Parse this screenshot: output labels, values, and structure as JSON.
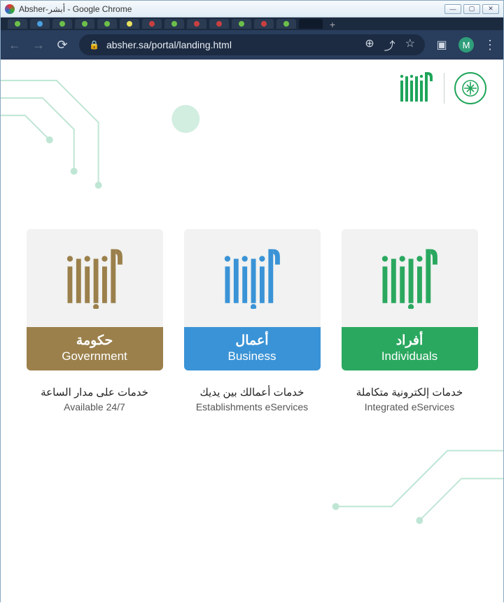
{
  "window": {
    "title": "Absher-أبشر - Google Chrome"
  },
  "browser": {
    "url": "absher.sa/portal/landing.html",
    "profile_initial": "M",
    "tab_dot_colors": [
      "#6cc04a",
      "#4aa0e0",
      "#6cc04a",
      "#6cc04a",
      "#6cc04a",
      "#e8e060",
      "#c84040",
      "#6cc04a",
      "#c84040",
      "#c84040",
      "#6cc04a",
      "#c84040",
      "#6cc04a"
    ]
  },
  "colors": {
    "gov": "#9b804c",
    "biz": "#3a93d6",
    "ind": "#2aa85f",
    "card_bg": "#f1f2f1",
    "decor": "#74c9a5",
    "decor_light": "#bfe6d4"
  },
  "cards": [
    {
      "key": "government",
      "color": "#9b804c",
      "title_ar": "حكومة",
      "title_en": "Government",
      "desc_ar": "خدمات على مدار الساعة",
      "desc_en": "Available 24/7"
    },
    {
      "key": "business",
      "color": "#3a93d6",
      "title_ar": "أعمال",
      "title_en": "Business",
      "desc_ar": "خدمات أعمالك بين يديك",
      "desc_en": "Establishments eServices"
    },
    {
      "key": "individuals",
      "color": "#2aa85f",
      "title_ar": "أفراد",
      "title_en": "Individuals",
      "desc_ar": "خدمات إلكترونية متكاملة",
      "desc_en": "Integrated eServices"
    }
  ]
}
